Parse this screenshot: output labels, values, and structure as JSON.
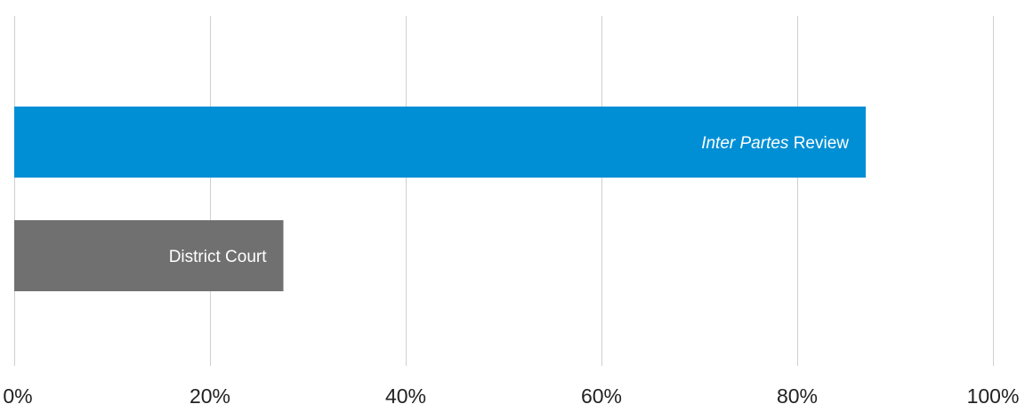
{
  "chart_data": {
    "type": "bar",
    "orientation": "horizontal",
    "categories": [
      "Inter Partes Review",
      "District Court"
    ],
    "values": [
      87,
      27.5
    ],
    "colors": [
      "#008fd5",
      "#707070"
    ],
    "xlim": [
      0,
      100
    ],
    "x_ticks": [
      0,
      20,
      40,
      60,
      80,
      100
    ],
    "tick_labels": [
      "0%",
      "20%",
      "40%",
      "60%",
      "80%",
      "100%"
    ],
    "grid": true,
    "legend": "none",
    "bar_labels": [
      {
        "italic": "Inter Partes",
        "normal": " Review"
      },
      {
        "italic": "",
        "normal": "District Court"
      }
    ]
  }
}
